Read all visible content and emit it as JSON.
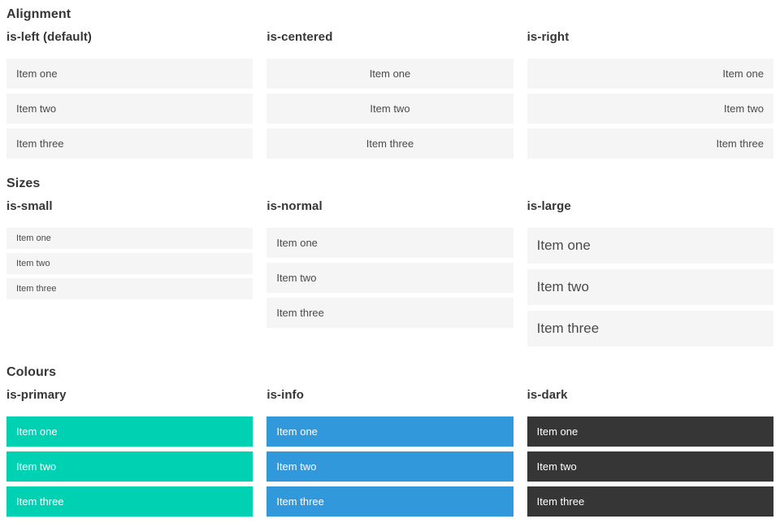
{
  "colors": {
    "heading_text": "#363636",
    "item_text": "#4a4a4a",
    "item_bg_light": "#f5f5f5",
    "primary": "#00d1b2",
    "info": "#3298dc",
    "dark": "#363636",
    "colored_item_text": "#ffffff"
  },
  "items": [
    "Item one",
    "Item two",
    "Item three"
  ],
  "sections": [
    {
      "title": "Alignment",
      "columns": [
        {
          "label": "is-left (default)",
          "variant": "align-left"
        },
        {
          "label": "is-centered",
          "variant": "align-center"
        },
        {
          "label": "is-right",
          "variant": "align-right"
        }
      ]
    },
    {
      "title": "Sizes",
      "columns": [
        {
          "label": "is-small",
          "variant": "size-small"
        },
        {
          "label": "is-normal",
          "variant": "size-normal"
        },
        {
          "label": "is-large",
          "variant": "size-large"
        }
      ]
    },
    {
      "title": "Colours",
      "columns": [
        {
          "label": "is-primary",
          "variant": "color-primary"
        },
        {
          "label": "is-info",
          "variant": "color-info"
        },
        {
          "label": "is-dark",
          "variant": "color-dark"
        }
      ]
    }
  ]
}
